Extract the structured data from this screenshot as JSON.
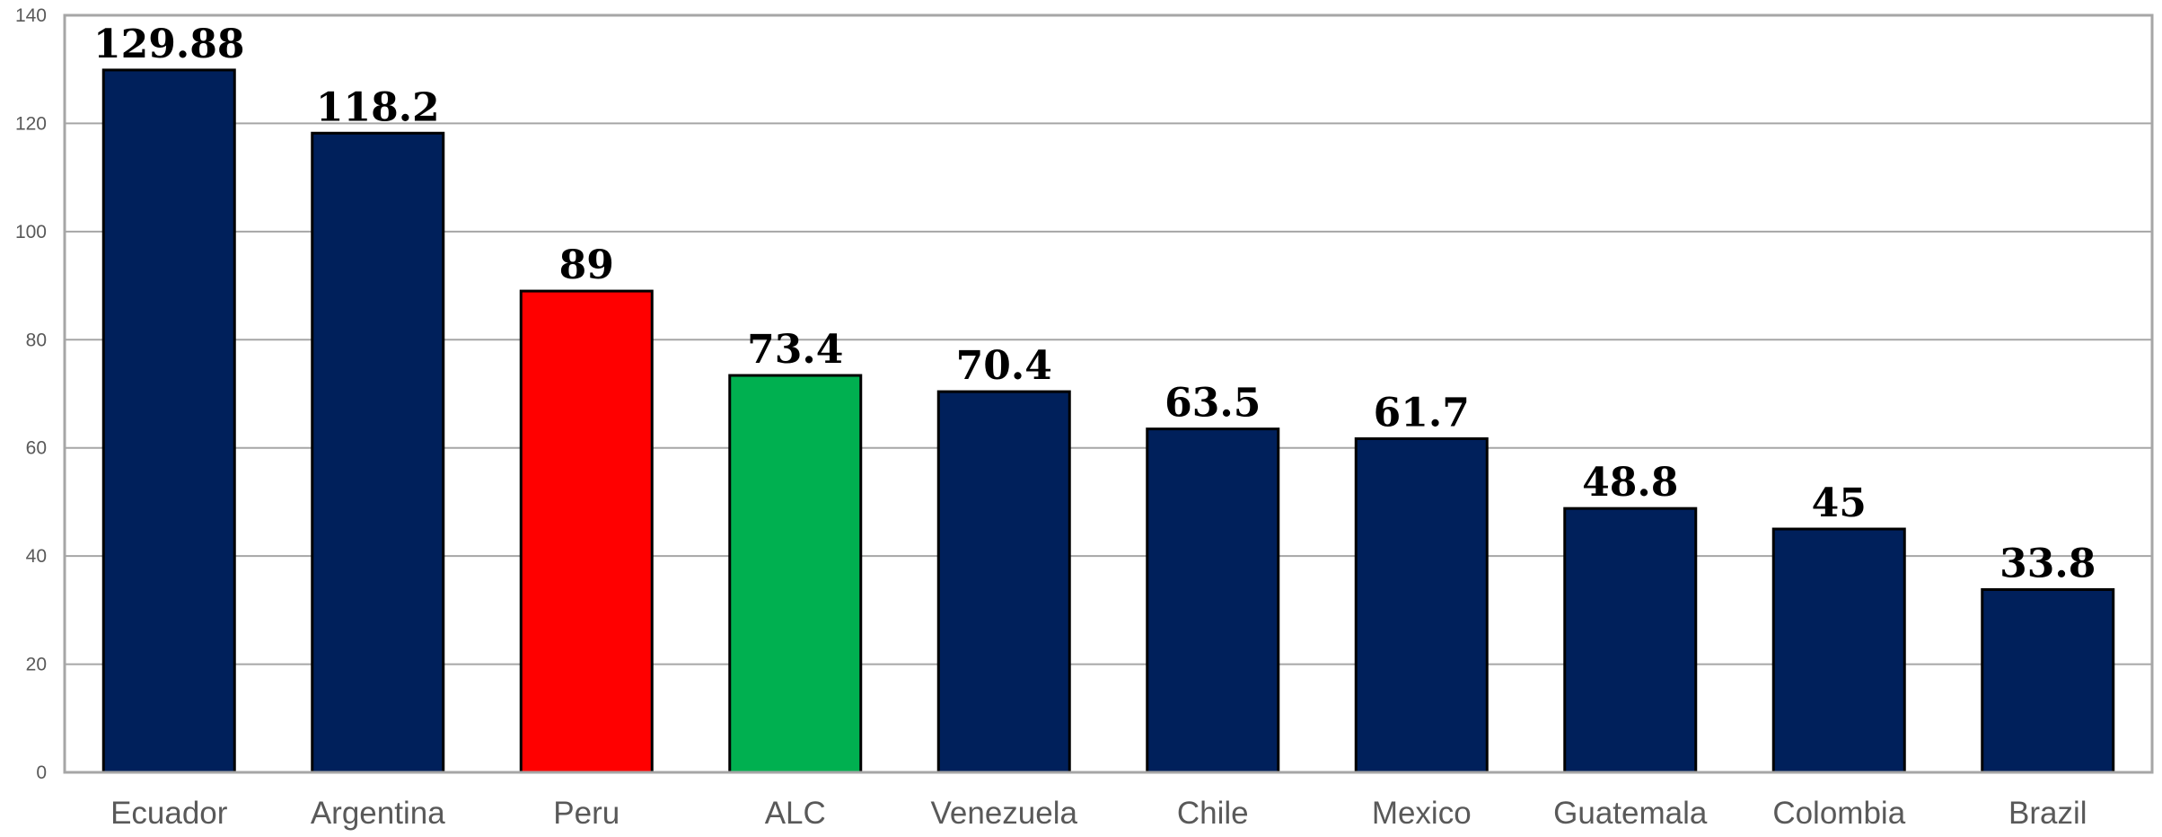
{
  "chart_data": {
    "type": "bar",
    "title": "",
    "xlabel": "",
    "ylabel": "",
    "categories": [
      "Ecuador",
      "Argentina",
      "Peru",
      "ALC",
      "Venezuela",
      "Chile",
      "Mexico",
      "Guatemala",
      "Colombia",
      "Brazil"
    ],
    "values": [
      129.88,
      118.2,
      89,
      73.4,
      70.4,
      63.5,
      61.7,
      48.8,
      45,
      33.8
    ],
    "data_labels": [
      "129.88",
      "118.2",
      "89",
      "73.4",
      "70.4",
      "63.5",
      "61.7",
      "48.8",
      "45",
      "33.8"
    ],
    "ylim": [
      0,
      140
    ],
    "yticks": [
      0,
      20,
      40,
      60,
      80,
      100,
      120,
      140
    ],
    "grid": true,
    "legend": "none",
    "colors": {
      "default": "#00205B",
      "Peru": "#FF0000",
      "ALC": "#00B050",
      "bar_outline": "#000000",
      "grid": "#A6A6A6",
      "frame": "#A6A6A6"
    }
  }
}
